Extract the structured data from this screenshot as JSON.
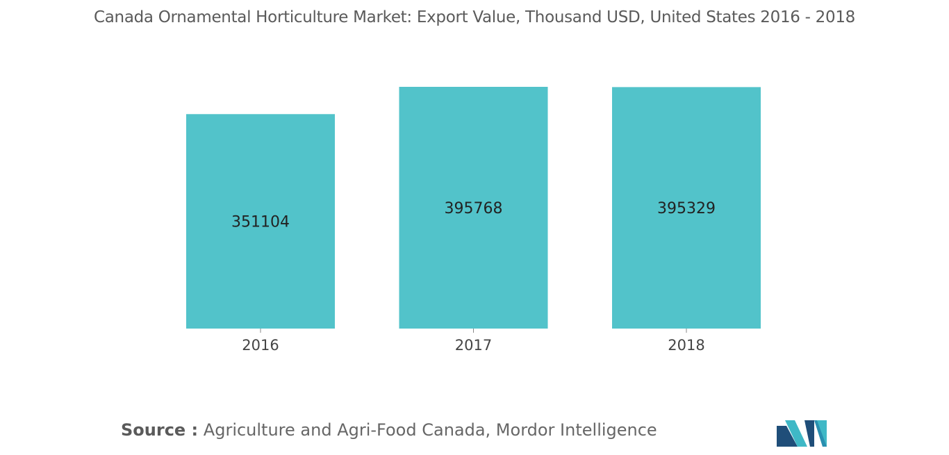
{
  "title": "Canada Ornamental Horticulture Market: Export Value, Thousand USD, United States 2016 - 2018",
  "source": {
    "label": "Source :",
    "text": "Agriculture and Agri-Food Canada, Mordor Intelligence"
  },
  "colors": {
    "bar": "#52c3ca",
    "logo_dark": "#1f4e79",
    "logo_light": "#3fb8c6"
  },
  "chart_data": {
    "type": "bar",
    "categories": [
      "2016",
      "2017",
      "2018"
    ],
    "values": [
      351104,
      395768,
      395329
    ],
    "data_labels": [
      "351104",
      "395768",
      "395329"
    ],
    "title": "Canada Ornamental Horticulture Market: Export Value, Thousand USD, United States 2016 - 2018",
    "xlabel": "",
    "ylabel": "",
    "grid": false,
    "legend": "none"
  }
}
